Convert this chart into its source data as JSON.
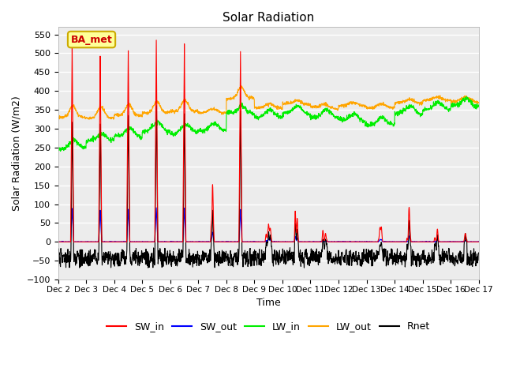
{
  "title": "Solar Radiation",
  "xlabel": "Time",
  "ylabel": "Solar Radiation (W/m2)",
  "ylim": [
    -100,
    570
  ],
  "yticks": [
    -100,
    -50,
    0,
    50,
    100,
    150,
    200,
    250,
    300,
    350,
    400,
    450,
    500,
    550
  ],
  "x_labels": [
    "Dec 2",
    "Dec 3",
    "Dec 4",
    "Dec 5",
    "Dec 6",
    "Dec 7",
    "Dec 8",
    "Dec 9",
    "Dec 10",
    "Dec 11",
    "Dec 12",
    "Dec 13",
    "Dec 14",
    "Dec 15",
    "Dec 16",
    "Dec 17"
  ],
  "n_days": 15,
  "pts_per_day": 144,
  "SW_in_color": "#ff0000",
  "SW_out_color": "#0000ff",
  "LW_in_color": "#00ee00",
  "LW_out_color": "#ffa500",
  "Rnet_color": "#000000",
  "label_box_color": "#ffff99",
  "label_box_edge": "#ccaa00",
  "label_text": "BA_met",
  "label_text_color": "#cc0000",
  "line_width": 0.8
}
